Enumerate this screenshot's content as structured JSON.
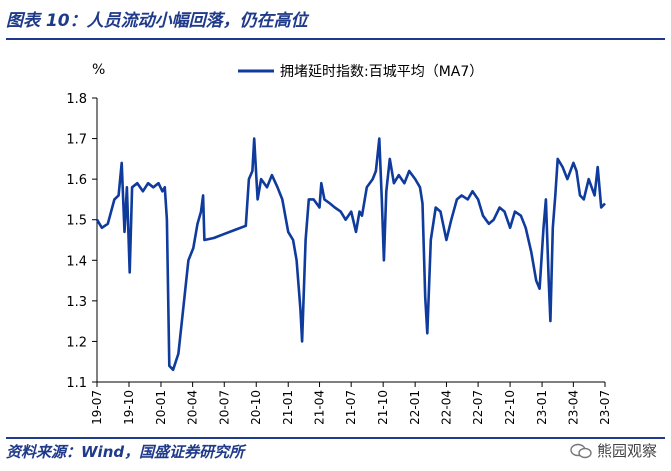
{
  "figure_title": "图表 10：人员流动小幅回落，仍在高位",
  "source": "资料来源：Wind，国盛证券研究所",
  "watermark": "熊园观察",
  "colors": {
    "line": "#0f3b9c",
    "text": "#1f3a8a",
    "axis": "#000000"
  },
  "chart_data": {
    "type": "line",
    "unit_label": "%",
    "ylim": [
      1.1,
      1.8
    ],
    "yticks": [
      "1.1",
      "1.2",
      "1.3",
      "1.4",
      "1.5",
      "1.6",
      "1.7",
      "1.8"
    ],
    "xlim": [
      "2019-07",
      "2023-07"
    ],
    "xticks": [
      "19-07",
      "19-10",
      "20-01",
      "20-04",
      "20-07",
      "20-10",
      "21-01",
      "21-04",
      "21-07",
      "21-10",
      "22-01",
      "22-04",
      "22-07",
      "22-10",
      "23-01",
      "23-04",
      "23-07"
    ],
    "grid": false,
    "legend_position": "top",
    "series": [
      {
        "name": "拥堵延时指数:百城平均（MA7）",
        "points": [
          [
            "2019-07-01",
            1.5
          ],
          [
            "2019-07-15",
            1.48
          ],
          [
            "2019-08-01",
            1.49
          ],
          [
            "2019-08-20",
            1.55
          ],
          [
            "2019-09-01",
            1.56
          ],
          [
            "2019-09-10",
            1.64
          ],
          [
            "2019-09-18",
            1.47
          ],
          [
            "2019-09-25",
            1.58
          ],
          [
            "2019-10-03",
            1.37
          ],
          [
            "2019-10-10",
            1.58
          ],
          [
            "2019-10-25",
            1.59
          ],
          [
            "2019-11-10",
            1.57
          ],
          [
            "2019-11-25",
            1.59
          ],
          [
            "2019-12-10",
            1.58
          ],
          [
            "2019-12-25",
            1.59
          ],
          [
            "2020-01-05",
            1.57
          ],
          [
            "2020-01-12",
            1.58
          ],
          [
            "2020-01-18",
            1.5
          ],
          [
            "2020-01-25",
            1.14
          ],
          [
            "2020-02-05",
            1.13
          ],
          [
            "2020-02-20",
            1.17
          ],
          [
            "2020-03-05",
            1.28
          ],
          [
            "2020-03-20",
            1.4
          ],
          [
            "2020-04-03",
            1.43
          ],
          [
            "2020-04-15",
            1.49
          ],
          [
            "2020-04-25",
            1.52
          ],
          [
            "2020-05-01",
            1.56
          ],
          [
            "2020-05-05",
            1.45
          ],
          [
            "2020-06-01",
            1.455
          ],
          [
            "2020-07-01",
            1.465
          ],
          [
            "2020-08-01",
            1.475
          ],
          [
            "2020-09-01",
            1.485
          ],
          [
            "2020-09-10",
            1.6
          ],
          [
            "2020-09-20",
            1.62
          ],
          [
            "2020-09-25",
            1.7
          ],
          [
            "2020-10-05",
            1.55
          ],
          [
            "2020-10-15",
            1.6
          ],
          [
            "2020-11-01",
            1.58
          ],
          [
            "2020-11-15",
            1.61
          ],
          [
            "2020-12-01",
            1.58
          ],
          [
            "2020-12-15",
            1.55
          ],
          [
            "2021-01-01",
            1.47
          ],
          [
            "2021-01-15",
            1.45
          ],
          [
            "2021-01-25",
            1.4
          ],
          [
            "2021-02-05",
            1.28
          ],
          [
            "2021-02-10",
            1.2
          ],
          [
            "2021-02-20",
            1.45
          ],
          [
            "2021-03-01",
            1.55
          ],
          [
            "2021-03-15",
            1.55
          ],
          [
            "2021-04-01",
            1.53
          ],
          [
            "2021-04-06",
            1.59
          ],
          [
            "2021-04-15",
            1.55
          ],
          [
            "2021-05-01",
            1.54
          ],
          [
            "2021-05-15",
            1.53
          ],
          [
            "2021-06-01",
            1.52
          ],
          [
            "2021-06-15",
            1.5
          ],
          [
            "2021-07-01",
            1.52
          ],
          [
            "2021-07-15",
            1.47
          ],
          [
            "2021-07-25",
            1.52
          ],
          [
            "2021-08-01",
            1.51
          ],
          [
            "2021-08-15",
            1.58
          ],
          [
            "2021-09-01",
            1.6
          ],
          [
            "2021-09-10",
            1.62
          ],
          [
            "2021-09-20",
            1.7
          ],
          [
            "2021-09-27",
            1.55
          ],
          [
            "2021-10-03",
            1.4
          ],
          [
            "2021-10-10",
            1.57
          ],
          [
            "2021-10-20",
            1.65
          ],
          [
            "2021-11-01",
            1.59
          ],
          [
            "2021-11-15",
            1.61
          ],
          [
            "2021-12-01",
            1.59
          ],
          [
            "2021-12-15",
            1.62
          ],
          [
            "2022-01-01",
            1.6
          ],
          [
            "2022-01-15",
            1.58
          ],
          [
            "2022-01-22",
            1.54
          ],
          [
            "2022-01-30",
            1.31
          ],
          [
            "2022-02-05",
            1.22
          ],
          [
            "2022-02-15",
            1.45
          ],
          [
            "2022-03-01",
            1.53
          ],
          [
            "2022-03-15",
            1.52
          ],
          [
            "2022-04-01",
            1.45
          ],
          [
            "2022-04-15",
            1.5
          ],
          [
            "2022-05-01",
            1.55
          ],
          [
            "2022-05-15",
            1.56
          ],
          [
            "2022-06-01",
            1.55
          ],
          [
            "2022-06-15",
            1.57
          ],
          [
            "2022-07-01",
            1.55
          ],
          [
            "2022-07-15",
            1.51
          ],
          [
            "2022-08-01",
            1.49
          ],
          [
            "2022-08-15",
            1.5
          ],
          [
            "2022-09-01",
            1.53
          ],
          [
            "2022-09-15",
            1.52
          ],
          [
            "2022-10-01",
            1.48
          ],
          [
            "2022-10-15",
            1.52
          ],
          [
            "2022-11-01",
            1.51
          ],
          [
            "2022-11-15",
            1.48
          ],
          [
            "2022-12-01",
            1.42
          ],
          [
            "2022-12-15",
            1.35
          ],
          [
            "2022-12-25",
            1.33
          ],
          [
            "2023-01-05",
            1.48
          ],
          [
            "2023-01-12",
            1.55
          ],
          [
            "2023-01-20",
            1.35
          ],
          [
            "2023-01-25",
            1.25
          ],
          [
            "2023-02-01",
            1.48
          ],
          [
            "2023-02-08",
            1.56
          ],
          [
            "2023-02-15",
            1.65
          ],
          [
            "2023-03-01",
            1.63
          ],
          [
            "2023-03-15",
            1.6
          ],
          [
            "2023-04-01",
            1.64
          ],
          [
            "2023-04-10",
            1.62
          ],
          [
            "2023-04-20",
            1.56
          ],
          [
            "2023-05-01",
            1.55
          ],
          [
            "2023-05-15",
            1.6
          ],
          [
            "2023-06-01",
            1.56
          ],
          [
            "2023-06-10",
            1.63
          ],
          [
            "2023-06-20",
            1.53
          ],
          [
            "2023-07-01",
            1.54
          ]
        ]
      }
    ]
  }
}
